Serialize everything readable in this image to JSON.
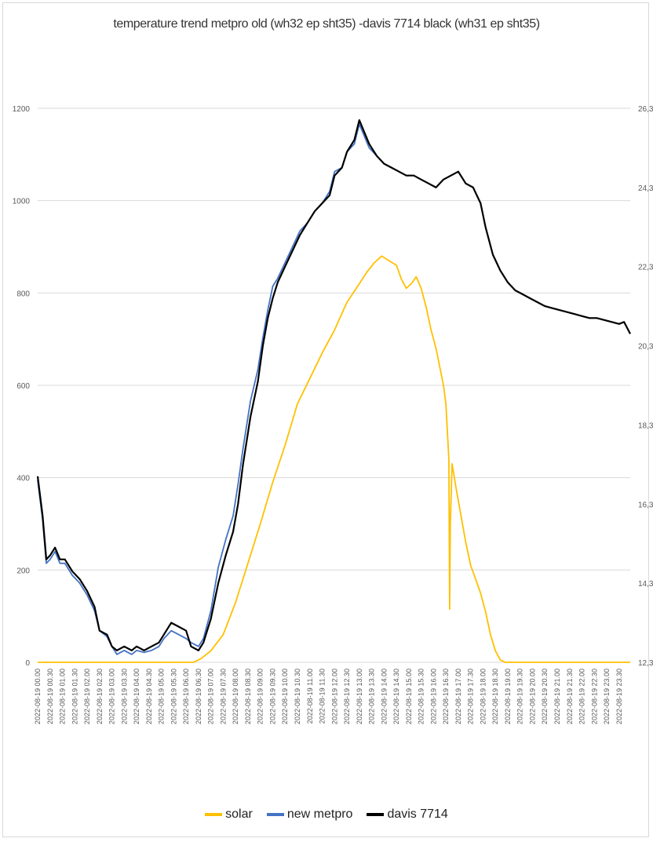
{
  "chart_data": {
    "type": "line",
    "title": "temperature trend metpro old (wh32 ep sht35) -davis 7714 black (wh31 ep sht35)",
    "xlabel": "",
    "ylabel": "",
    "y_left": {
      "ylim": [
        0,
        1200
      ],
      "ticks": [
        "0",
        "200",
        "400",
        "600",
        "800",
        "1000",
        "1200"
      ]
    },
    "y_right": {
      "ylim": [
        12.3,
        26.3
      ],
      "ticks": [
        "12,3",
        "14,3",
        "16,3",
        "18,3",
        "20,3",
        "22,3",
        "24,3",
        "26,3"
      ]
    },
    "grid": true,
    "legend_position": "bottom",
    "x_tick_labels": [
      "2022-08-19 00.00",
      "2022-08-19 00.30",
      "2022-08-19 01.00",
      "2022-08-19 01.30",
      "2022-08-19 02.00",
      "2022-08-19 02.30",
      "2022-08-19 03.00",
      "2022-08-19 03.30",
      "2022-08-19 04.00",
      "2022-08-19 04.30",
      "2022-08-19 05.00",
      "2022-08-19 05.30",
      "2022-08-19 06.00",
      "2022-08-19 06.30",
      "2022-08-19 07.00",
      "2022-08-19 07.30",
      "2022-08-19 08.00",
      "2022-08-19 08.30",
      "2022-08-19 09.00",
      "2022-08-19 09.30",
      "2022-08-19 10.00",
      "2022-08-19 10.30",
      "2022-08-19 11.00",
      "2022-08-19 11.30",
      "2022-08-19 12.00",
      "2022-08-19 12.30",
      "2022-08-19 13.00",
      "2022-08-19 13.30",
      "2022-08-19 14.00",
      "2022-08-19 14.30",
      "2022-08-19 15.00",
      "2022-08-19 15.30",
      "2022-08-19 16.00",
      "2022-08-19 16.30",
      "2022-08-19 17.00",
      "2022-08-19 17.30",
      "2022-08-19 18.00",
      "2022-08-19 18.30",
      "2022-08-19 19.00",
      "2022-08-19 19.30",
      "2022-08-19 20.00",
      "2022-08-19 20.30",
      "2022-08-19 21.00",
      "2022-08-19 21.30",
      "2022-08-19 22.00",
      "2022-08-19 22.30",
      "2022-08-19 23.00",
      "2022-08-19 23.30"
    ],
    "x_hours": [
      0,
      0.5,
      1,
      1.5,
      2,
      2.5,
      3,
      3.5,
      4,
      4.5,
      5,
      5.5,
      6,
      6.5,
      7,
      7.5,
      8,
      8.5,
      9,
      9.5,
      10,
      10.5,
      11,
      11.5,
      12,
      12.5,
      13,
      13.5,
      14,
      14.5,
      15,
      15.5,
      16,
      16.5,
      17,
      17.5,
      18,
      18.5,
      19,
      19.5,
      20,
      20.5,
      21,
      21.5,
      22,
      22.5,
      23,
      23.5,
      23.95
    ],
    "series": [
      {
        "name": "solar",
        "axis": "left",
        "color": "#FFC000",
        "points": [
          [
            0,
            0
          ],
          [
            6.3,
            0
          ],
          [
            6.6,
            8
          ],
          [
            7.0,
            25
          ],
          [
            7.5,
            60
          ],
          [
            8.0,
            130
          ],
          [
            8.5,
            215
          ],
          [
            9.0,
            300
          ],
          [
            9.5,
            390
          ],
          [
            10.0,
            470
          ],
          [
            10.5,
            560
          ],
          [
            11.0,
            615
          ],
          [
            11.5,
            670
          ],
          [
            12.0,
            720
          ],
          [
            12.5,
            780
          ],
          [
            13.0,
            820
          ],
          [
            13.3,
            845
          ],
          [
            13.6,
            865
          ],
          [
            13.9,
            880
          ],
          [
            14.2,
            870
          ],
          [
            14.5,
            860
          ],
          [
            14.7,
            830
          ],
          [
            14.9,
            810
          ],
          [
            15.1,
            820
          ],
          [
            15.3,
            835
          ],
          [
            15.5,
            810
          ],
          [
            15.7,
            770
          ],
          [
            15.9,
            720
          ],
          [
            16.1,
            680
          ],
          [
            16.25,
            640
          ],
          [
            16.4,
            600
          ],
          [
            16.5,
            560
          ],
          [
            16.62,
            440
          ],
          [
            16.65,
            115
          ],
          [
            16.68,
            300
          ],
          [
            16.75,
            430
          ],
          [
            16.9,
            380
          ],
          [
            17.1,
            320
          ],
          [
            17.3,
            260
          ],
          [
            17.5,
            210
          ],
          [
            17.7,
            180
          ],
          [
            17.9,
            150
          ],
          [
            18.1,
            110
          ],
          [
            18.3,
            60
          ],
          [
            18.5,
            25
          ],
          [
            18.7,
            5
          ],
          [
            18.9,
            0
          ],
          [
            23.95,
            0
          ]
        ]
      },
      {
        "name": "new metpro",
        "axis": "right",
        "color": "#4472C4",
        "points": [
          [
            0,
            16.9
          ],
          [
            0.2,
            15.9
          ],
          [
            0.35,
            14.8
          ],
          [
            0.5,
            14.9
          ],
          [
            0.7,
            15.1
          ],
          [
            0.9,
            14.8
          ],
          [
            1.1,
            14.8
          ],
          [
            1.4,
            14.5
          ],
          [
            1.7,
            14.3
          ],
          [
            2.0,
            14.0
          ],
          [
            2.3,
            13.6
          ],
          [
            2.5,
            13.1
          ],
          [
            2.8,
            12.95
          ],
          [
            3.0,
            12.7
          ],
          [
            3.2,
            12.5
          ],
          [
            3.5,
            12.6
          ],
          [
            3.8,
            12.5
          ],
          [
            4.0,
            12.6
          ],
          [
            4.3,
            12.55
          ],
          [
            4.6,
            12.6
          ],
          [
            4.9,
            12.7
          ],
          [
            5.1,
            12.9
          ],
          [
            5.4,
            13.1
          ],
          [
            5.7,
            13.0
          ],
          [
            6.0,
            12.9
          ],
          [
            6.2,
            12.8
          ],
          [
            6.5,
            12.7
          ],
          [
            6.7,
            12.9
          ],
          [
            7.0,
            13.6
          ],
          [
            7.3,
            14.7
          ],
          [
            7.6,
            15.4
          ],
          [
            7.9,
            16.0
          ],
          [
            8.1,
            16.8
          ],
          [
            8.3,
            17.7
          ],
          [
            8.6,
            18.9
          ],
          [
            8.9,
            19.7
          ],
          [
            9.1,
            20.5
          ],
          [
            9.3,
            21.2
          ],
          [
            9.5,
            21.8
          ],
          [
            9.7,
            22.0
          ],
          [
            10.0,
            22.4
          ],
          [
            10.3,
            22.8
          ],
          [
            10.6,
            23.2
          ],
          [
            10.9,
            23.4
          ],
          [
            11.2,
            23.7
          ],
          [
            11.5,
            23.9
          ],
          [
            11.8,
            24.2
          ],
          [
            12.0,
            24.7
          ],
          [
            12.3,
            24.8
          ],
          [
            12.5,
            25.2
          ],
          [
            12.8,
            25.4
          ],
          [
            13.0,
            25.9
          ],
          [
            13.2,
            25.6
          ],
          [
            13.4,
            25.3
          ],
          [
            13.7,
            25.1
          ],
          [
            14.0,
            24.9
          ],
          [
            14.3,
            24.8
          ],
          [
            14.6,
            24.7
          ],
          [
            14.9,
            24.6
          ],
          [
            15.2,
            24.6
          ],
          [
            15.5,
            24.5
          ],
          [
            15.8,
            24.4
          ],
          [
            16.1,
            24.3
          ],
          [
            16.4,
            24.5
          ],
          [
            16.7,
            24.6
          ],
          [
            17.0,
            24.7
          ],
          [
            17.3,
            24.4
          ],
          [
            17.6,
            24.3
          ],
          [
            17.9,
            23.9
          ],
          [
            18.1,
            23.3
          ],
          [
            18.4,
            22.6
          ],
          [
            18.7,
            22.2
          ],
          [
            19.0,
            21.9
          ],
          [
            19.3,
            21.7
          ],
          [
            19.6,
            21.6
          ],
          [
            19.9,
            21.5
          ],
          [
            20.2,
            21.4
          ],
          [
            20.5,
            21.3
          ],
          [
            20.8,
            21.25
          ],
          [
            21.1,
            21.2
          ],
          [
            21.4,
            21.15
          ],
          [
            21.7,
            21.1
          ],
          [
            22.0,
            21.05
          ],
          [
            22.3,
            21.0
          ],
          [
            22.6,
            21.0
          ],
          [
            22.9,
            20.95
          ],
          [
            23.2,
            20.9
          ],
          [
            23.5,
            20.85
          ],
          [
            23.7,
            20.9
          ],
          [
            23.95,
            20.6
          ]
        ]
      },
      {
        "name": "davis 7714",
        "axis": "right",
        "color": "#000000",
        "points": [
          [
            0,
            17.0
          ],
          [
            0.2,
            16.0
          ],
          [
            0.35,
            14.9
          ],
          [
            0.5,
            15.0
          ],
          [
            0.7,
            15.2
          ],
          [
            0.9,
            14.9
          ],
          [
            1.1,
            14.9
          ],
          [
            1.4,
            14.6
          ],
          [
            1.7,
            14.4
          ],
          [
            2.0,
            14.1
          ],
          [
            2.3,
            13.7
          ],
          [
            2.5,
            13.1
          ],
          [
            2.8,
            13.0
          ],
          [
            3.0,
            12.7
          ],
          [
            3.2,
            12.6
          ],
          [
            3.5,
            12.7
          ],
          [
            3.8,
            12.6
          ],
          [
            4.0,
            12.7
          ],
          [
            4.3,
            12.6
          ],
          [
            4.6,
            12.7
          ],
          [
            4.9,
            12.8
          ],
          [
            5.1,
            13.0
          ],
          [
            5.4,
            13.3
          ],
          [
            5.7,
            13.2
          ],
          [
            6.0,
            13.1
          ],
          [
            6.2,
            12.7
          ],
          [
            6.5,
            12.6
          ],
          [
            6.7,
            12.8
          ],
          [
            7.0,
            13.4
          ],
          [
            7.3,
            14.3
          ],
          [
            7.6,
            15.0
          ],
          [
            7.9,
            15.6
          ],
          [
            8.1,
            16.3
          ],
          [
            8.3,
            17.3
          ],
          [
            8.6,
            18.5
          ],
          [
            8.9,
            19.4
          ],
          [
            9.1,
            20.3
          ],
          [
            9.3,
            21.0
          ],
          [
            9.5,
            21.5
          ],
          [
            9.7,
            21.9
          ],
          [
            10.0,
            22.3
          ],
          [
            10.3,
            22.7
          ],
          [
            10.6,
            23.1
          ],
          [
            10.9,
            23.4
          ],
          [
            11.2,
            23.7
          ],
          [
            11.5,
            23.9
          ],
          [
            11.8,
            24.1
          ],
          [
            12.0,
            24.6
          ],
          [
            12.3,
            24.8
          ],
          [
            12.5,
            25.2
          ],
          [
            12.8,
            25.5
          ],
          [
            13.0,
            26.0
          ],
          [
            13.2,
            25.7
          ],
          [
            13.4,
            25.4
          ],
          [
            13.7,
            25.1
          ],
          [
            14.0,
            24.9
          ],
          [
            14.3,
            24.8
          ],
          [
            14.6,
            24.7
          ],
          [
            14.9,
            24.6
          ],
          [
            15.2,
            24.6
          ],
          [
            15.5,
            24.5
          ],
          [
            15.8,
            24.4
          ],
          [
            16.1,
            24.3
          ],
          [
            16.4,
            24.5
          ],
          [
            16.7,
            24.6
          ],
          [
            17.0,
            24.7
          ],
          [
            17.3,
            24.4
          ],
          [
            17.6,
            24.3
          ],
          [
            17.9,
            23.9
          ],
          [
            18.1,
            23.3
          ],
          [
            18.4,
            22.6
          ],
          [
            18.7,
            22.2
          ],
          [
            19.0,
            21.9
          ],
          [
            19.3,
            21.7
          ],
          [
            19.6,
            21.6
          ],
          [
            19.9,
            21.5
          ],
          [
            20.2,
            21.4
          ],
          [
            20.5,
            21.3
          ],
          [
            20.8,
            21.25
          ],
          [
            21.1,
            21.2
          ],
          [
            21.4,
            21.15
          ],
          [
            21.7,
            21.1
          ],
          [
            22.0,
            21.05
          ],
          [
            22.3,
            21.0
          ],
          [
            22.6,
            21.0
          ],
          [
            22.9,
            20.95
          ],
          [
            23.2,
            20.9
          ],
          [
            23.5,
            20.85
          ],
          [
            23.7,
            20.9
          ],
          [
            23.95,
            20.6
          ]
        ]
      }
    ]
  },
  "legend": {
    "items": [
      {
        "label": "solar",
        "color": "#FFC000"
      },
      {
        "label": "new metpro",
        "color": "#4472C4"
      },
      {
        "label": "davis 7714",
        "color": "#000000"
      }
    ]
  }
}
